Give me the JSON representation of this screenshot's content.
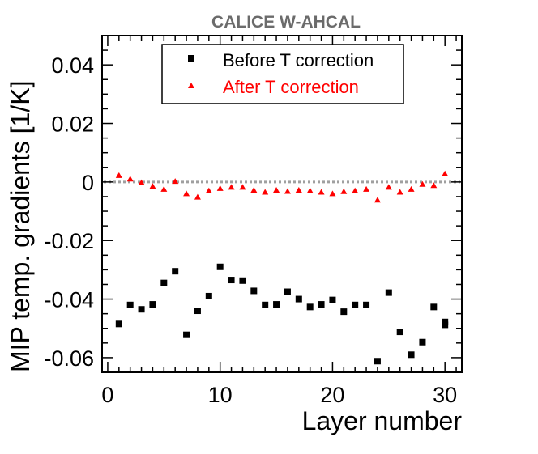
{
  "chart_data": {
    "type": "scatter",
    "title": "CALICE W-AHCAL",
    "xlabel": "Layer number",
    "ylabel": "MIP temp. gradients [1/K]",
    "xlim": [
      -0.5,
      31.5
    ],
    "ylim": [
      -0.065,
      0.05
    ],
    "xticks": [
      0,
      10,
      20,
      30
    ],
    "xtick_labels": [
      "0",
      "10",
      "20",
      "30"
    ],
    "yticks": [
      -0.06,
      -0.04,
      -0.02,
      0,
      0.02,
      0.04
    ],
    "ytick_labels": [
      "-0.06",
      "-0.04",
      "-0.02",
      "0",
      "0.02",
      "0.04"
    ],
    "reference_line": {
      "y": 0,
      "style": "dotted",
      "color": "#a0a0a0"
    },
    "legend_position": "top-center",
    "series": [
      {
        "name": "Before T correction",
        "marker": "square",
        "color": "#000000",
        "x": [
          1,
          2,
          3,
          4,
          5,
          6,
          7,
          8,
          9,
          10,
          11,
          12,
          13,
          14,
          15,
          16,
          17,
          18,
          19,
          20,
          21,
          22,
          23,
          24,
          25,
          26,
          27,
          28,
          29,
          30,
          30
        ],
        "y": [
          -0.0485,
          -0.042,
          -0.0435,
          -0.0418,
          -0.0345,
          -0.0305,
          -0.0522,
          -0.044,
          -0.039,
          -0.029,
          -0.0335,
          -0.0337,
          -0.0372,
          -0.042,
          -0.0418,
          -0.0375,
          -0.04,
          -0.0427,
          -0.0418,
          -0.0403,
          -0.0443,
          -0.042,
          -0.042,
          -0.0612,
          -0.0378,
          -0.0512,
          -0.059,
          -0.0547,
          -0.0427,
          -0.0478,
          -0.0488
        ]
      },
      {
        "name": "After T correction",
        "marker": "triangle",
        "color": "#ff0000",
        "x": [
          1,
          2,
          3,
          4,
          5,
          6,
          7,
          8,
          9,
          10,
          11,
          12,
          13,
          14,
          15,
          16,
          17,
          18,
          19,
          20,
          21,
          22,
          23,
          24,
          25,
          26,
          27,
          28,
          29,
          30
        ],
        "y": [
          0.0022,
          0.001,
          -0.0002,
          -0.0015,
          -0.0025,
          0.0002,
          -0.004,
          -0.0052,
          -0.003,
          -0.0022,
          -0.0018,
          -0.0018,
          -0.0028,
          -0.0035,
          -0.0028,
          -0.0032,
          -0.0028,
          -0.003,
          -0.0035,
          -0.004,
          -0.0033,
          -0.003,
          -0.0025,
          -0.0062,
          -0.0018,
          -0.0035,
          -0.0025,
          -0.0008,
          -0.0012,
          0.0028
        ]
      }
    ]
  }
}
